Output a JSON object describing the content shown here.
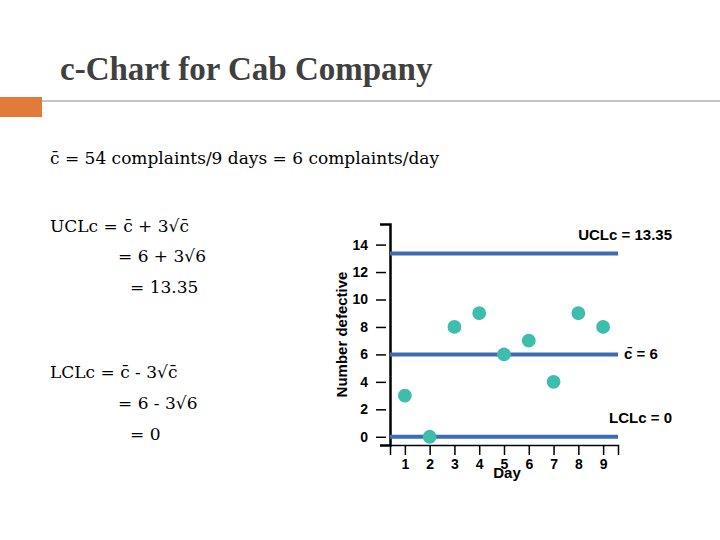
{
  "chart_data": {
    "type": "scatter",
    "title": "c-Chart for Cab Company",
    "subtitle": "c̄ = 54 complaints/9 days = 6 complaints/day",
    "annotations": [
      "UCLc = c̄ + 3√c̄",
      "= 6 + 3√6",
      "= 13.35",
      "LCLc = c̄ - 3√c̄",
      "= 6 - 3√6",
      "= 0"
    ],
    "x_label": "Day",
    "y_label": "Number defective",
    "x": [
      1,
      2,
      3,
      4,
      5,
      6,
      7,
      8,
      9
    ],
    "values": [
      3,
      0,
      8,
      9,
      6,
      7,
      4,
      9,
      8
    ],
    "color": "#3dbdac",
    "marker": "circle",
    "xlim": [
      0.4,
      9.6
    ],
    "xticks": [
      1,
      2,
      3,
      4,
      5,
      6,
      7,
      8,
      9
    ],
    "ylim": [
      -0.6,
      15.5
    ],
    "yticks": [
      0,
      2,
      4,
      6,
      8,
      10,
      12,
      14
    ],
    "grid": false,
    "reference_lines": [
      {
        "label": "UCLc = 13.35",
        "value": 13.35,
        "color": "#3d6db0"
      },
      {
        "label": "c̄ = 6",
        "value": 6,
        "color": "#3d6db0"
      },
      {
        "label": "LCLc = 0",
        "value": 0,
        "color": "#3d6db0"
      }
    ]
  }
}
